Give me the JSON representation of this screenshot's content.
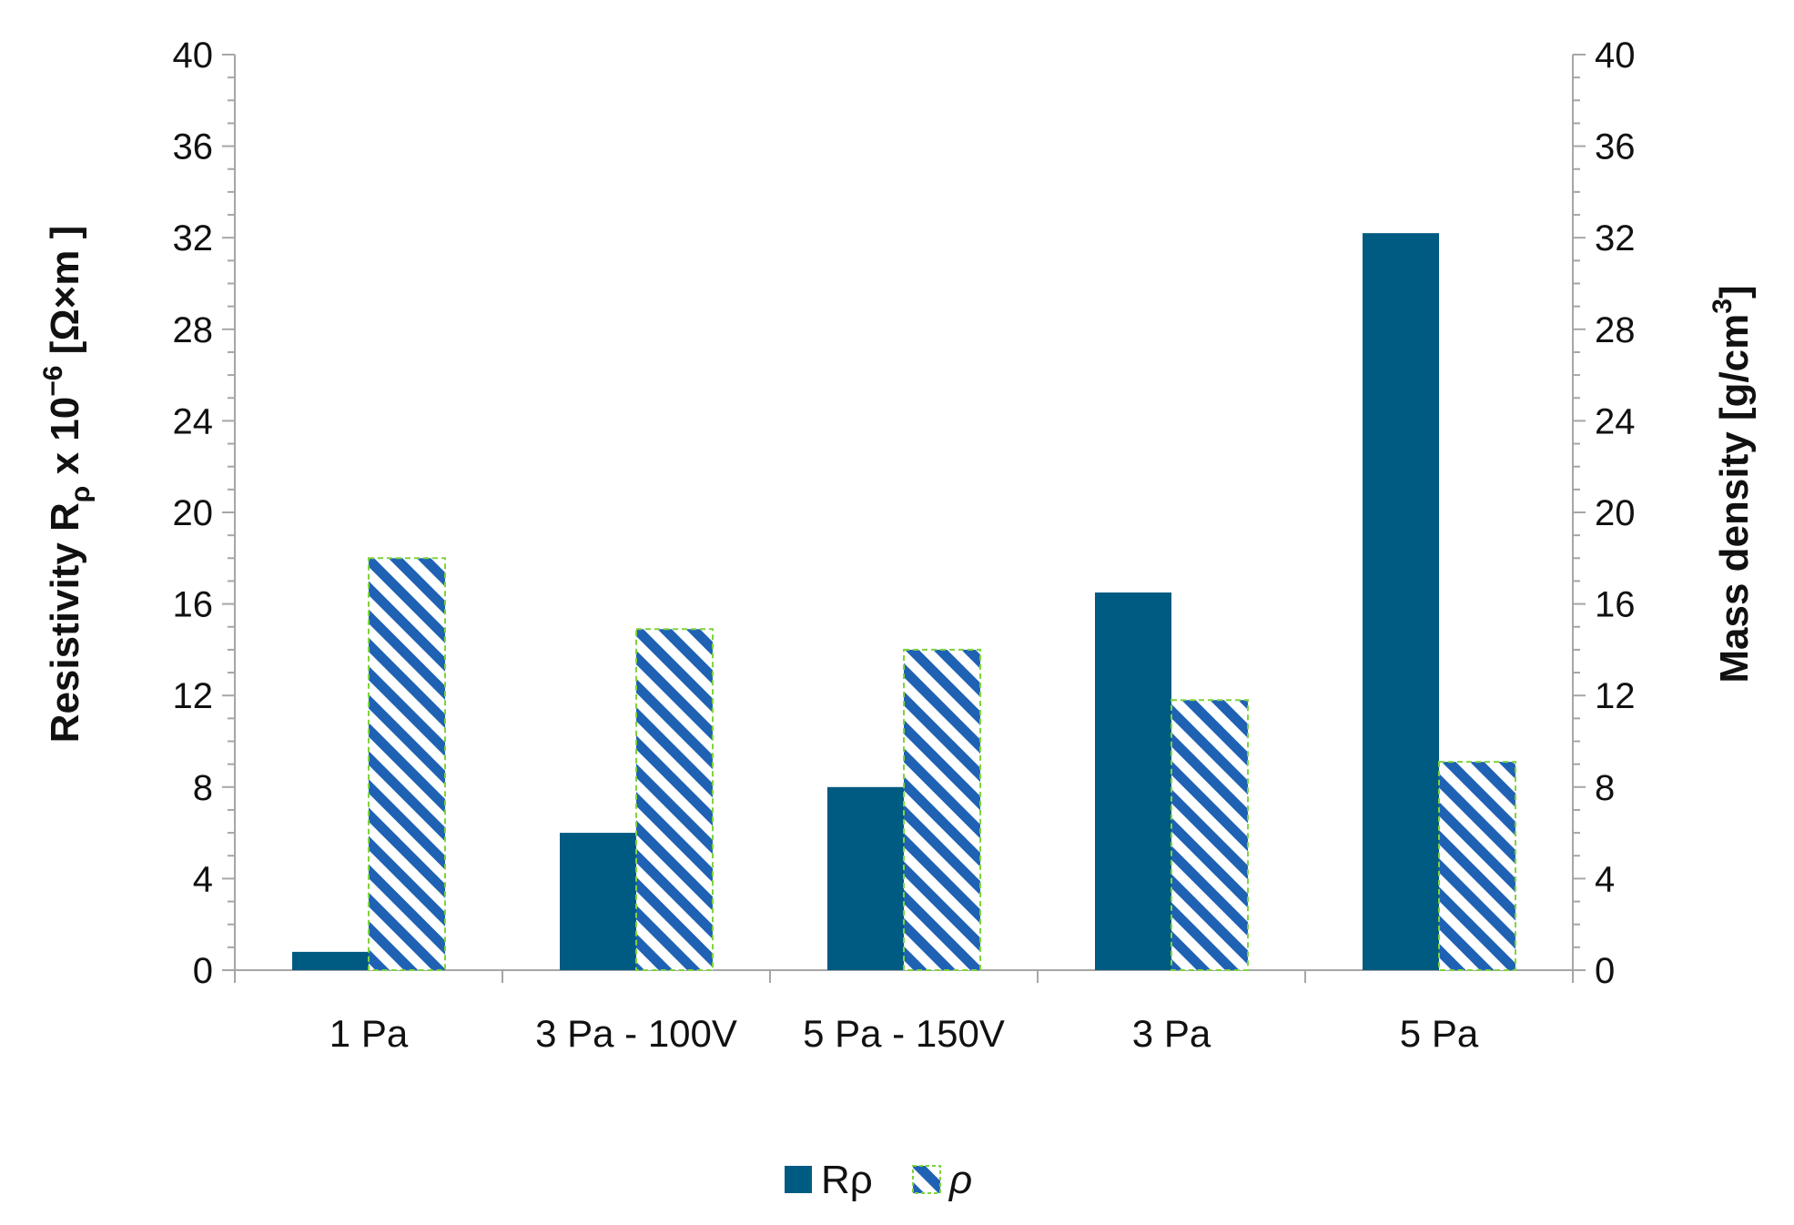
{
  "chart_data": {
    "type": "bar",
    "categories": [
      "1 Pa",
      "3 Pa - 100V",
      "5 Pa - 150V",
      "3 Pa",
      "5 Pa"
    ],
    "series": [
      {
        "name": "Rρ",
        "axis": "left",
        "fill": "solid",
        "color": "#005b82",
        "values": [
          0.8,
          6.0,
          8.0,
          16.5,
          32.2
        ]
      },
      {
        "name": "ρ",
        "axis": "right",
        "fill": "hatched",
        "color": "#1f62b4",
        "edge_color": "#7fd43c",
        "values": [
          18.0,
          14.9,
          14.0,
          11.8,
          9.1
        ]
      }
    ],
    "ylabel": {
      "main": "Resistivity R",
      "subscript": "ρ",
      "middle": " x 10",
      "superscript": "−6",
      "unit": " [Ω×m ]"
    },
    "ylabel_right": {
      "main": "Mass density [g/cm",
      "superscript": "3",
      "close": "]"
    },
    "ylim": [
      0,
      40
    ],
    "ylim_right": [
      0,
      40
    ],
    "yticks": [
      0,
      4,
      8,
      12,
      16,
      20,
      24,
      28,
      32,
      36,
      40
    ],
    "yticks_right": [
      0,
      4,
      8,
      12,
      16,
      20,
      24,
      28,
      32,
      36,
      40
    ],
    "grid": false,
    "legend": "bottom-center"
  }
}
